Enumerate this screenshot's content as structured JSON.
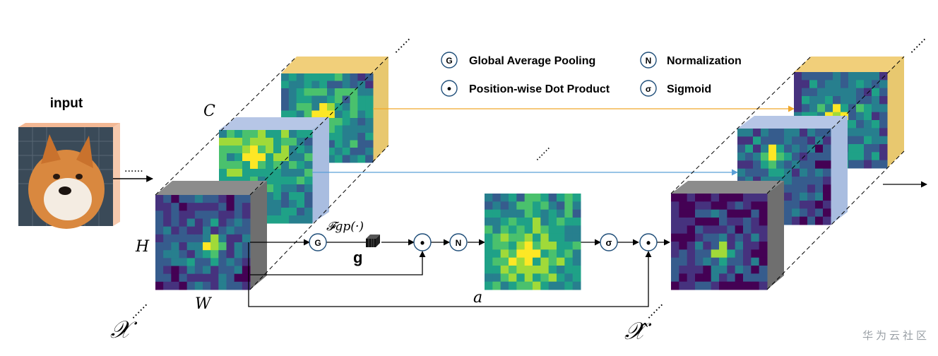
{
  "input_label": "input",
  "dots": "......",
  "legend": {
    "items": [
      {
        "symbol": "G",
        "label": "Global Average Pooling"
      },
      {
        "symbol": "N",
        "label": "Normalization"
      },
      {
        "symbol": "•",
        "label": "Position-wise Dot Product"
      },
      {
        "symbol": "σ",
        "label": "Sigmoid"
      }
    ]
  },
  "labels": {
    "c": "C",
    "h": "H",
    "w": "W",
    "x": "𝒳",
    "x_hat": "𝒳̂",
    "a": "a",
    "fgp": "𝓕gp(·)",
    "g": "g"
  },
  "ops": {
    "g": "G",
    "dot": "•",
    "n": "N",
    "sigma": "σ"
  },
  "watermark": "华为云社区",
  "colors": {
    "yellow_arrow": "#f0a72a",
    "blue_arrow": "#5aa0d8",
    "viridis_dark": "#440154",
    "viridis_mid": "#21918c",
    "viridis_light": "#fde725",
    "cube_yellow": "#f1cf7a",
    "cube_blue": "#a9bde0",
    "cube_gray": "#7b7b7b",
    "input_bg": "#f6c9ad"
  }
}
